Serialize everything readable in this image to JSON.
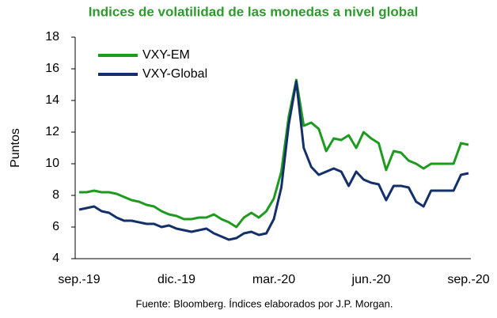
{
  "chart_data": {
    "type": "line",
    "title": "Indices de volatilidad de las monedas a nivel global",
    "y_label": "Puntos",
    "source": "Fuente: Bloomberg. Índices elaborados por J.P. Morgan.",
    "categories": [
      "sep.-19",
      null,
      null,
      null,
      null,
      null,
      null,
      null,
      null,
      null,
      null,
      null,
      null,
      "dic.-19",
      null,
      null,
      null,
      null,
      null,
      null,
      null,
      null,
      null,
      null,
      null,
      null,
      "mar.-20",
      null,
      null,
      null,
      null,
      null,
      null,
      null,
      null,
      null,
      null,
      null,
      null,
      "jun.-20",
      null,
      null,
      null,
      null,
      null,
      null,
      null,
      null,
      null,
      null,
      null,
      null,
      "sep.-20"
    ],
    "series": [
      {
        "name": "VXY-EM",
        "color": "#1e9a1e",
        "values": [
          8.2,
          8.2,
          8.3,
          8.2,
          8.2,
          8.1,
          7.9,
          7.7,
          7.6,
          7.4,
          7.3,
          7.0,
          6.8,
          6.7,
          6.5,
          6.5,
          6.6,
          6.6,
          6.8,
          6.5,
          6.3,
          6.0,
          6.6,
          6.9,
          6.6,
          7.0,
          7.8,
          9.5,
          13.0,
          15.3,
          12.4,
          12.6,
          12.2,
          10.8,
          11.6,
          11.5,
          11.8,
          11.0,
          12.0,
          11.6,
          11.3,
          9.6,
          10.8,
          10.7,
          10.2,
          10.0,
          9.7,
          10.0,
          10.0,
          10.0,
          10.0,
          11.3,
          11.2
        ]
      },
      {
        "name": "VXY-Global",
        "color": "#13306b",
        "values": [
          7.1,
          7.2,
          7.3,
          7.0,
          6.9,
          6.6,
          6.4,
          6.4,
          6.3,
          6.2,
          6.2,
          6.0,
          6.1,
          5.9,
          5.8,
          5.7,
          5.8,
          5.9,
          5.6,
          5.4,
          5.2,
          5.3,
          5.6,
          5.7,
          5.5,
          5.6,
          6.5,
          8.5,
          12.5,
          15.2,
          11.0,
          9.8,
          9.3,
          9.5,
          9.7,
          9.5,
          8.6,
          9.5,
          9.0,
          8.8,
          8.7,
          7.7,
          8.6,
          8.6,
          8.5,
          7.6,
          7.3,
          8.3,
          8.3,
          8.3,
          8.3,
          9.3,
          9.4
        ]
      }
    ],
    "ylim": [
      4,
      18
    ],
    "yticks": [
      4,
      6,
      8,
      10,
      12,
      14,
      16,
      18
    ],
    "legend": "upper left"
  }
}
